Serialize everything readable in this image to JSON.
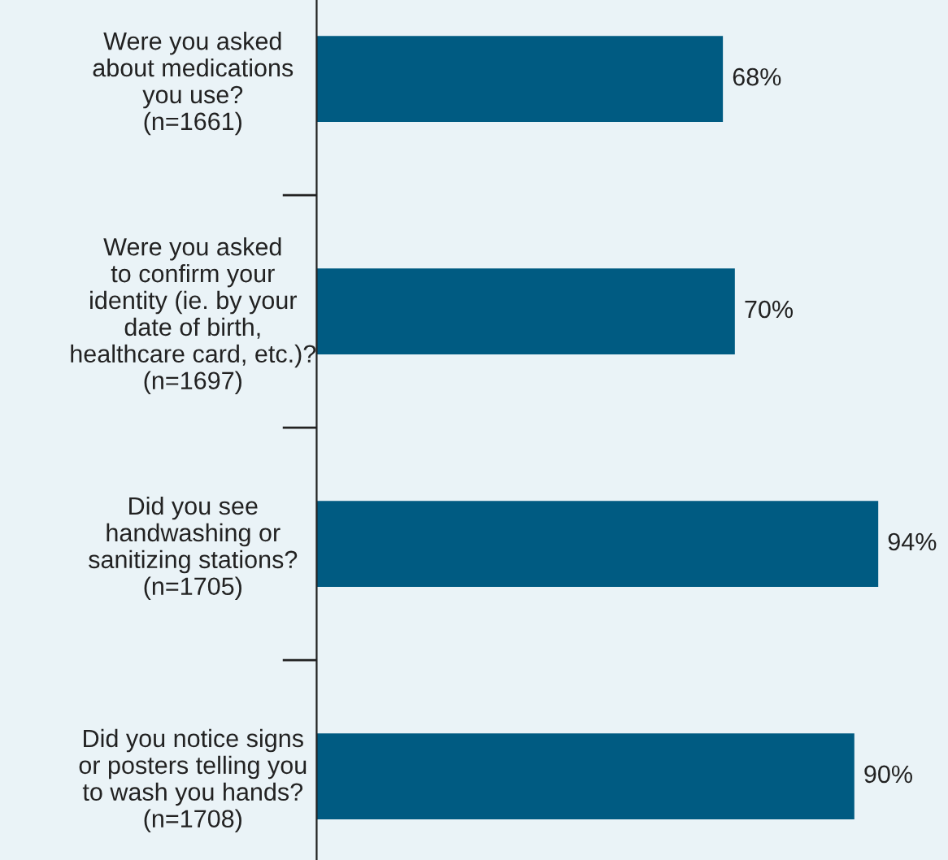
{
  "chart_data": {
    "type": "bar",
    "orientation": "horizontal",
    "categories": [
      "Were you asked\nabout medications\nyou use?\n(n=1661)",
      "Were you asked\nto confirm your\nidentity (ie. by your\ndate of birth,\nhealthcare card, etc.)?\n(n=1697)",
      "Did you see\nhandwashing or\nsanitizing stations?\n(n=1705)",
      "Did you notice signs\nor posters telling you\nto wash you hands?\n(n=1708)"
    ],
    "values": [
      68,
      70,
      94,
      90
    ],
    "value_labels": [
      "68%",
      "70%",
      "94%",
      "90%"
    ],
    "color": "#005b82",
    "tick_labels": "y"
  }
}
